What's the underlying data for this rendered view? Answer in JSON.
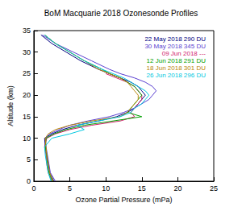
{
  "chart_data": {
    "type": "line",
    "title": "BoM Macquarie 2018 Ozonesonde Profiles",
    "x_label": "Ozone Partial Pressure (mPa)",
    "y_label": "Altitude (km)",
    "xlim": [
      0,
      25
    ],
    "xticks": [
      0,
      5,
      10,
      15,
      20,
      25
    ],
    "ylim": [
      0,
      35
    ],
    "yticks": [
      0,
      5,
      10,
      15,
      20,
      25,
      30,
      35
    ],
    "grid": false,
    "legend": "upper right",
    "series": [
      {
        "name": "22 May 2018 290 DU",
        "color": "#000080",
        "x": [
          2.8,
          2.2,
          2.0,
          1.8,
          1.6,
          1.5,
          2.5,
          4.0,
          6.0,
          9.0,
          11.5,
          13.0,
          14.0,
          14.5,
          15.0,
          15.5,
          15.0,
          14.5,
          13.5,
          12.0,
          10.5,
          9.0,
          6.5,
          4.5,
          2.5,
          1.0
        ],
        "y": [
          0,
          2,
          4,
          6,
          8,
          10,
          11,
          12,
          13,
          14,
          15,
          16,
          17,
          18,
          19,
          20,
          21,
          22,
          23,
          24,
          25,
          26,
          28,
          30,
          32,
          34
        ]
      },
      {
        "name": "30 May 2018 345 DU",
        "color": "#5a3fd0",
        "x": [
          3.0,
          2.3,
          2.1,
          1.9,
          1.7,
          1.6,
          2.2,
          3.5,
          5.0,
          7.5,
          10.5,
          12.5,
          14.0,
          15.0,
          16.0,
          16.5,
          17.0,
          16.5,
          15.5,
          14.0,
          12.0,
          10.5,
          8.0,
          5.5,
          3.0,
          1.2
        ],
        "y": [
          0,
          2,
          4,
          6,
          8,
          10,
          11,
          12,
          13,
          14,
          15,
          16,
          17,
          18,
          19,
          20,
          21,
          22,
          23,
          24,
          25,
          26,
          28,
          30,
          32,
          34
        ]
      },
      {
        "name": "09 Jun 2018 ---",
        "color": "#d0206a",
        "x": [
          2.5,
          2.0,
          1.8,
          1.7,
          1.5,
          1.8,
          3.0,
          5.0,
          8.0,
          12.0,
          14.0,
          13.5,
          14.0,
          14.5,
          15.0,
          15.0,
          14.5,
          14.0,
          13.0,
          11.5,
          10.0
        ],
        "y": [
          0,
          2,
          4,
          6,
          8,
          10,
          11,
          12,
          13,
          14,
          15,
          16,
          17,
          18,
          19,
          20,
          21,
          22,
          23,
          24,
          25
        ]
      },
      {
        "name": "12 Jun 2018 291 DU",
        "color": "#00a000",
        "x": [
          2.6,
          2.1,
          1.9,
          1.8,
          1.6,
          1.7,
          2.8,
          4.5,
          7.0,
          11.0,
          15.0,
          13.0,
          13.5,
          14.0,
          14.5,
          15.0,
          14.5,
          14.0,
          13.0,
          12.0,
          10.5,
          9.5,
          7.0,
          5.0,
          3.0,
          1.5
        ],
        "y": [
          0,
          2,
          4,
          6,
          8,
          10,
          11,
          12,
          13,
          14,
          15,
          16,
          17,
          18,
          19,
          20,
          21,
          22,
          23,
          24,
          25,
          26,
          28,
          30,
          32,
          34
        ]
      },
      {
        "name": "18 Jun 2018 301 DU",
        "color": "#b8860b",
        "x": [
          2.7,
          2.2,
          2.0,
          1.8,
          1.7,
          1.6,
          2.0,
          3.0,
          5.0,
          8.0,
          12.0,
          13.0,
          13.5,
          14.0,
          14.5,
          14.5,
          14.0,
          13.5,
          13.0,
          12.0,
          10.5,
          9.0,
          7.0,
          5.0,
          3.0,
          1.5
        ],
        "y": [
          0,
          2,
          4,
          6,
          8,
          10,
          11,
          12,
          13,
          14,
          15,
          16,
          17,
          18,
          19,
          20,
          21,
          22,
          23,
          24,
          25,
          26,
          28,
          30,
          32,
          34
        ]
      },
      {
        "name": "26 Jun 2018 296 DU",
        "color": "#00c8e0",
        "x": [
          2.4,
          2.0,
          1.8,
          1.6,
          1.5,
          2.5,
          5.0,
          7.0,
          6.0,
          9.0,
          12.0,
          13.5,
          14.0,
          15.0,
          15.5,
          16.0,
          15.5,
          14.5,
          13.5,
          12.5,
          11.0,
          9.5,
          7.0,
          5.0,
          3.0,
          1.5
        ],
        "y": [
          0,
          2,
          4,
          6,
          8,
          10,
          11,
          12,
          13,
          14,
          15,
          16,
          17,
          18,
          19,
          20,
          21,
          22,
          23,
          24,
          25,
          26,
          28,
          30,
          32,
          34
        ]
      }
    ]
  }
}
